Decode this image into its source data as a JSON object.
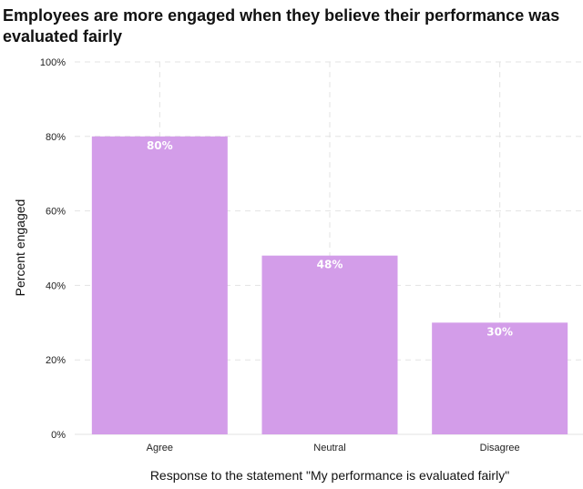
{
  "chart_data": {
    "type": "bar",
    "title": "Employees are more engaged when they believe their performance was evaluated fairly",
    "categories": [
      "Agree",
      "Neutral",
      "Disagree"
    ],
    "values": [
      80,
      48,
      30
    ],
    "data_labels": [
      "80%",
      "48%",
      "30%"
    ],
    "xlabel": "Response to the statement \"My performance is evaluated fairly\"",
    "ylabel": "Percent engaged",
    "ylim": [
      0,
      100
    ],
    "yticks": [
      0,
      20,
      40,
      60,
      80,
      100
    ],
    "ytick_labels": [
      "0%",
      "20%",
      "40%",
      "60%",
      "80%",
      "100%"
    ],
    "grid": true,
    "bar_color": "#d39de9",
    "grid_color": "#e3e3e3"
  }
}
